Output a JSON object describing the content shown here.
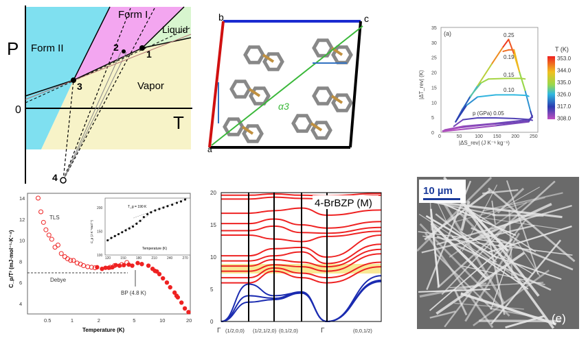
{
  "colors": {
    "form2": "#7fe0f0",
    "form1": "#f3a6f0",
    "liquid": "#d8f5cf",
    "vapor": "#f7f3c8",
    "red": "#ee2222",
    "blue": "#1a2bb0",
    "yellow": "#f8e27a"
  },
  "chart_data": [
    {
      "type": "diagram",
      "panel": "phase-diagram",
      "xlabel": "T",
      "ylabel": "P",
      "origin_label": "0",
      "regions": [
        "Form II",
        "Form I",
        "Liquid",
        "Vapor"
      ],
      "points": [
        "1",
        "2",
        "3",
        "4"
      ]
    },
    {
      "type": "diagram",
      "panel": "crystal-structure",
      "axis_labels": {
        "b": "b",
        "c": "c",
        "a": "a",
        "alpha": "α3"
      }
    },
    {
      "type": "line",
      "panel_label": "(a)",
      "xlabel": "|ΔS_rev| (J K⁻¹ kg⁻¹)",
      "ylabel": "|ΔT_rev| (K)",
      "xlim": [
        0,
        260
      ],
      "ylim": [
        0,
        35
      ],
      "xticks": [
        0,
        50,
        100,
        150,
        200,
        250
      ],
      "yticks": [
        0,
        5,
        10,
        15,
        20,
        25,
        30,
        35
      ],
      "colorbar": {
        "title": "T (K)",
        "ticks": [
          "353.0",
          "344.0",
          "335.0",
          "326.0",
          "317.0",
          "308.0"
        ]
      },
      "series": [
        {
          "name": "0.25",
          "x": [
            40,
            60,
            100,
            140,
            170,
            185,
            200,
            215,
            230,
            245,
            250,
            240,
            150,
            60,
            10
          ],
          "y": [
            3.5,
            8,
            15.5,
            23,
            28.5,
            31,
            26,
            20,
            14,
            7,
            5,
            4.2,
            3,
            2,
            0.8
          ]
        },
        {
          "name": "0.19",
          "x": [
            170,
            185,
            200,
            215,
            230
          ],
          "y": [
            27,
            27.5,
            27.5,
            20,
            14
          ]
        },
        {
          "name": "0.15",
          "x": [
            40,
            80,
            110,
            130,
            180,
            220,
            230
          ],
          "y": [
            3.5,
            12,
            16.5,
            17.8,
            18,
            18,
            17.8
          ]
        },
        {
          "name": "0.10",
          "x": [
            40,
            70,
            100,
            150,
            200,
            235,
            240
          ],
          "y": [
            3.5,
            9,
            11.8,
            12.5,
            12.5,
            12.3,
            12
          ]
        },
        {
          "name": "p (GPa) 0.05",
          "x": [
            35,
            60,
            100,
            150,
            200,
            240,
            250
          ],
          "y": [
            2,
            4.2,
            4.8,
            4.8,
            4.6,
            4.3,
            4.0
          ]
        },
        {
          "name": "",
          "x": [
            5,
            50,
            100,
            150,
            200,
            240,
            250,
            240,
            150,
            60,
            5
          ],
          "y": [
            0.5,
            1.5,
            2.2,
            2.8,
            3.2,
            3.8,
            5.5,
            3.5,
            2.2,
            1.0,
            0.3
          ]
        }
      ]
    },
    {
      "type": "scatter",
      "xlabel": "Temperature (K)",
      "ylabel": "C_p/T³ (mJ·mol⁻¹·K⁻⁴)",
      "xscale": "log",
      "xlim": [
        0.32,
        20
      ],
      "ylim": [
        3,
        14.5
      ],
      "xticks": [
        "0.5",
        "1",
        "2",
        "5",
        "10",
        "20"
      ],
      "yticks": [
        "4",
        "6",
        "8",
        "10",
        "12",
        "14"
      ],
      "annotations": {
        "tls": "TLS",
        "debye": "Debye",
        "bp": "BP (4.8 K)",
        "debye_level": 6.85
      },
      "series": [
        {
          "name": "open",
          "T": [
            0.4,
            0.43,
            0.46,
            0.49,
            0.53,
            0.57,
            0.62,
            0.67,
            0.73,
            0.8,
            0.86,
            0.93,
            1.0,
            1.1,
            1.2,
            1.3,
            1.45,
            1.6,
            1.75,
            2.6,
            2.9,
            3.5,
            4.0
          ],
          "y": [
            14,
            12.7,
            11.7,
            11.0,
            10.5,
            10.1,
            9.35,
            9.55,
            8.75,
            8.45,
            8.25,
            8.1,
            8.1,
            7.85,
            7.75,
            7.6,
            7.5,
            7.45,
            7.4,
            7.45,
            7.6,
            7.7,
            7.9
          ]
        },
        {
          "name": "filled",
          "T": [
            1.85,
            2.1,
            2.3,
            2.5,
            2.75,
            3.0,
            3.3,
            3.7,
            4.2,
            4.6,
            5.3,
            5.9,
            7.0,
            7.8,
            8.3,
            8.7,
            9.3,
            10.2,
            11.3,
            12.3,
            13.8,
            14.5,
            15,
            16.5,
            18,
            19.8
          ],
          "y": [
            7.45,
            7.3,
            7.4,
            7.4,
            7.45,
            7.65,
            7.6,
            7.65,
            7.7,
            7.6,
            7.85,
            7.75,
            7.6,
            7.3,
            7.1,
            7.05,
            6.8,
            6.4,
            6.0,
            5.55,
            5.05,
            4.75,
            4.6,
            4.1,
            3.55,
            3.2
          ]
        }
      ],
      "inset": {
        "xlabel": "Temperature (K)",
        "ylabel": "C_p (J K⁻¹mol⁻¹)",
        "xlim": [
          115,
          280
        ],
        "ylim": [
          100,
          220
        ],
        "xticks": [
          "120",
          "150",
          "180",
          "210",
          "240",
          "270"
        ],
        "yticks": [
          "100",
          "150",
          "200"
        ],
        "annotation": "T_g = 190 K",
        "T": [
          120,
          127,
          134,
          141,
          148,
          155,
          162,
          169,
          176,
          183,
          190,
          197,
          204,
          212,
          220,
          228,
          236,
          245,
          254,
          262,
          270
        ],
        "y": [
          131,
          136,
          140,
          144,
          148,
          152,
          156,
          160,
          166,
          172,
          180,
          186,
          190,
          194,
          197,
          200,
          203,
          206,
          210,
          213,
          217
        ]
      }
    },
    {
      "type": "line",
      "title": "4-BrBZP (M)",
      "xticks": [
        "Γ",
        "(1/2,0,0)",
        "(1/2,1/2,0)",
        "(0,1/2,0)",
        "Γ",
        "(0,0,1/2)"
      ],
      "ylim": [
        0,
        20
      ],
      "yticks": [
        "0",
        "5",
        "10",
        "15",
        "20"
      ],
      "gap_band": [
        5.2,
        6.1
      ],
      "acoustic": [
        [
          0,
          5.8,
          4.0,
          4.5,
          3.8,
          0,
          6.4
        ],
        [
          0,
          4.0,
          3.6,
          4.6,
          3.5,
          0,
          6.2
        ],
        [
          0,
          3.0,
          3.4,
          4.4,
          2.8,
          0,
          7.1
        ]
      ],
      "optical": [
        [
          0,
          6.0,
          7.8,
          6.8,
          4.5,
          6.0,
          8.5
        ],
        [
          0,
          6.8,
          8.3,
          7.5,
          6.5,
          6.8,
          9.2
        ],
        [
          0,
          7.8,
          8.8,
          8.5,
          7.6,
          7.8,
          10.5
        ],
        [
          0,
          8.6,
          9.6,
          9.2,
          8.7,
          8.5,
          11.2
        ],
        [
          0,
          9.4,
          10.2,
          10.8,
          9.6,
          9.0,
          12.0
        ],
        [
          0,
          10.2,
          11.3,
          11.5,
          10.4,
          10.0,
          13.4
        ],
        [
          0,
          13.4,
          12.8,
          12.4,
          12.8,
          13.2,
          14.0
        ],
        [
          0,
          14.1,
          14.8,
          13.8,
          13.6,
          13.7,
          14.6
        ],
        [
          0,
          15.2,
          15.9,
          15.0,
          13.9,
          14.5,
          15.5
        ],
        [
          0,
          16.8,
          17.2,
          17.6,
          17.0,
          16.5,
          17.3
        ],
        [
          0,
          19.0,
          19.3,
          19.1,
          19.2,
          19.0,
          19.6
        ],
        [
          0,
          19.6,
          19.8,
          19.6,
          19.5,
          19.5,
          19.9
        ]
      ]
    },
    {
      "type": "image",
      "scale_bar": "10 µm",
      "panel_label": "(e)"
    }
  ]
}
